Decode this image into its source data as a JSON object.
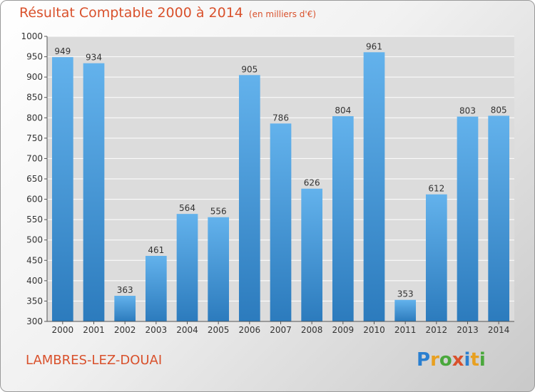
{
  "header": {
    "title": "Résultat Comptable 2000 à 2014",
    "unit_note": "(en milliers d'€)"
  },
  "footer": {
    "commune": "LAMBRES-LEZ-DOUAI",
    "logo_letters": [
      "P",
      "r",
      "o",
      "x",
      "i",
      "t",
      "i"
    ],
    "logo_colors": [
      "#2a7fd0",
      "#e8a020",
      "#4aa83c",
      "#d9512c",
      "#2a7fd0",
      "#e8a020",
      "#4aa83c"
    ]
  },
  "colors": {
    "title": "#d9512c",
    "bar_top": "#63b2ec",
    "bar_bottom": "#2c7bbd",
    "plot_background": "#dcdcdc",
    "grid": "#ffffff"
  },
  "chart_data": {
    "type": "bar",
    "title": "Résultat Comptable 2000 à 2014",
    "subtitle": "(en milliers d'€)",
    "categories": [
      "2000",
      "2001",
      "2002",
      "2003",
      "2004",
      "2005",
      "2006",
      "2007",
      "2008",
      "2009",
      "2010",
      "2011",
      "2012",
      "2013",
      "2014"
    ],
    "values": [
      949,
      934,
      363,
      461,
      564,
      556,
      905,
      786,
      626,
      804,
      961,
      353,
      612,
      803,
      805
    ],
    "ylim": [
      300,
      1000
    ],
    "yticks": [
      300,
      350,
      400,
      450,
      500,
      550,
      600,
      650,
      700,
      750,
      800,
      850,
      900,
      950,
      1000
    ],
    "xlabel": "",
    "ylabel": "",
    "grid": true,
    "data_labels": true
  }
}
